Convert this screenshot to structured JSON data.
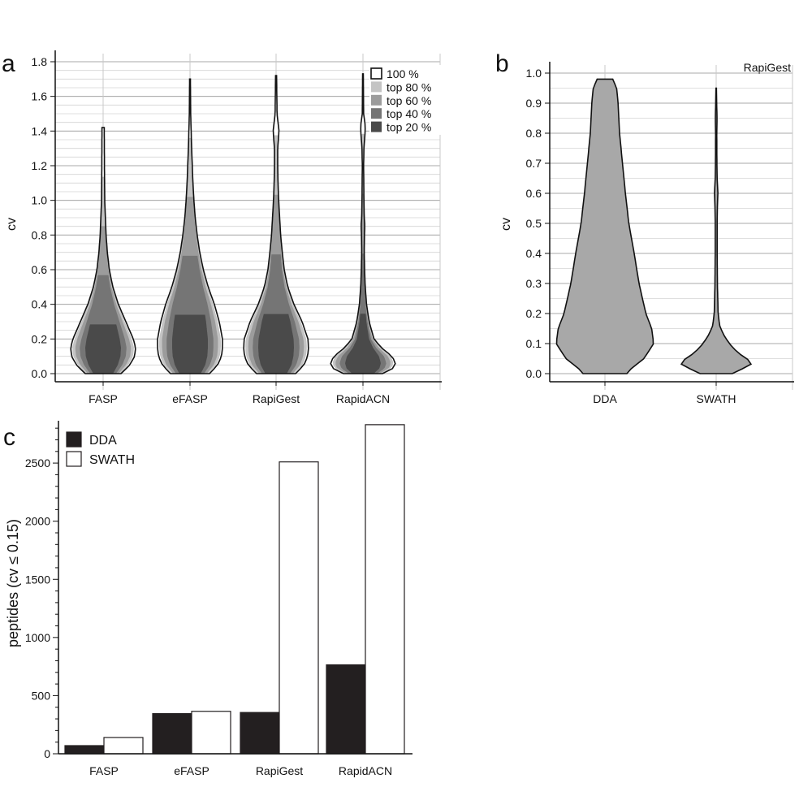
{
  "chart_data": [
    {
      "panel": "a",
      "type": "violin",
      "ylabel": "cv",
      "ylim": [
        0,
        1.8
      ],
      "yticks": [
        "0.0",
        "0.2",
        "0.4",
        "0.6",
        "0.8",
        "1.0",
        "1.2",
        "1.4",
        "1.6",
        "1.8"
      ],
      "grid": true,
      "legend_position": "top-right",
      "legend": [
        {
          "label": "100 %",
          "color": "#ffffff"
        },
        {
          "label": "top 80 %",
          "color": "#c4c4c4"
        },
        {
          "label": "top 60 %",
          "color": "#9c9c9c"
        },
        {
          "label": "top 40 %",
          "color": "#757575"
        },
        {
          "label": "top 20 %",
          "color": "#4a4a4a"
        }
      ],
      "categories": [
        {
          "label": "FASP",
          "max": 1.42,
          "profile": [
            [
              0,
              0.55
            ],
            [
              0.05,
              0.82
            ],
            [
              0.1,
              0.97
            ],
            [
              0.15,
              1.0
            ],
            [
              0.2,
              0.93
            ],
            [
              0.3,
              0.7
            ],
            [
              0.4,
              0.47
            ],
            [
              0.5,
              0.3
            ],
            [
              0.6,
              0.19
            ],
            [
              0.7,
              0.13
            ],
            [
              0.8,
              0.09
            ],
            [
              0.9,
              0.07
            ],
            [
              1.0,
              0.05
            ],
            [
              1.2,
              0.04
            ],
            [
              1.42,
              0.035
            ]
          ]
        },
        {
          "label": "eFASP",
          "max": 1.7,
          "profile": [
            [
              0,
              0.6
            ],
            [
              0.05,
              0.85
            ],
            [
              0.1,
              0.97
            ],
            [
              0.15,
              1.0
            ],
            [
              0.2,
              1.0
            ],
            [
              0.3,
              0.9
            ],
            [
              0.4,
              0.75
            ],
            [
              0.5,
              0.56
            ],
            [
              0.6,
              0.41
            ],
            [
              0.7,
              0.3
            ],
            [
              0.8,
              0.22
            ],
            [
              0.9,
              0.16
            ],
            [
              1.0,
              0.12
            ],
            [
              1.1,
              0.09
            ],
            [
              1.2,
              0.07
            ],
            [
              1.3,
              0.05
            ],
            [
              1.4,
              0.035
            ],
            [
              1.5,
              0.02
            ],
            [
              1.7,
              0.012
            ]
          ]
        },
        {
          "label": "RapiGest",
          "max": 1.72,
          "profile": [
            [
              0,
              0.6
            ],
            [
              0.05,
              0.86
            ],
            [
              0.1,
              0.97
            ],
            [
              0.15,
              1.0
            ],
            [
              0.2,
              0.98
            ],
            [
              0.3,
              0.8
            ],
            [
              0.4,
              0.55
            ],
            [
              0.5,
              0.36
            ],
            [
              0.6,
              0.25
            ],
            [
              0.7,
              0.19
            ],
            [
              0.8,
              0.14
            ],
            [
              0.9,
              0.11
            ],
            [
              1.0,
              0.08
            ],
            [
              1.1,
              0.06
            ],
            [
              1.2,
              0.05
            ],
            [
              1.3,
              0.05
            ],
            [
              1.4,
              0.09
            ],
            [
              1.45,
              0.06
            ],
            [
              1.5,
              0.03
            ],
            [
              1.72,
              0.015
            ]
          ]
        },
        {
          "label": "RapidACN",
          "max": 1.73,
          "profile": [
            [
              0,
              0.6
            ],
            [
              0.03,
              0.92
            ],
            [
              0.06,
              1.0
            ],
            [
              0.1,
              0.9
            ],
            [
              0.15,
              0.56
            ],
            [
              0.2,
              0.34
            ],
            [
              0.3,
              0.19
            ],
            [
              0.4,
              0.11
            ],
            [
              0.5,
              0.07
            ],
            [
              0.6,
              0.05
            ],
            [
              0.7,
              0.04
            ],
            [
              0.8,
              0.045
            ],
            [
              0.85,
              0.06
            ],
            [
              0.9,
              0.04
            ],
            [
              1.0,
              0.03
            ],
            [
              1.1,
              0.025
            ],
            [
              1.2,
              0.02
            ],
            [
              1.3,
              0.03
            ],
            [
              1.4,
              0.07
            ],
            [
              1.45,
              0.06
            ],
            [
              1.5,
              0.02
            ],
            [
              1.73,
              0.01
            ]
          ]
        }
      ]
    },
    {
      "panel": "b",
      "type": "violin",
      "title": "RapiGest",
      "ylabel": "cv",
      "ylim": [
        0,
        1.0
      ],
      "yticks": [
        "0.0",
        "0.1",
        "0.2",
        "0.3",
        "0.4",
        "0.5",
        "0.6",
        "0.7",
        "0.8",
        "0.9",
        "1.0"
      ],
      "grid": true,
      "fill_color": "#a8a8a8",
      "categories": [
        {
          "label": "DDA",
          "max": 0.98,
          "profile": [
            [
              0.005,
              0.45
            ],
            [
              0.05,
              0.8
            ],
            [
              0.1,
              1.0
            ],
            [
              0.15,
              0.96
            ],
            [
              0.2,
              0.84
            ],
            [
              0.3,
              0.7
            ],
            [
              0.4,
              0.6
            ],
            [
              0.5,
              0.49
            ],
            [
              0.6,
              0.42
            ],
            [
              0.7,
              0.36
            ],
            [
              0.8,
              0.3
            ],
            [
              0.9,
              0.27
            ],
            [
              0.95,
              0.24
            ],
            [
              0.98,
              0.16
            ]
          ]
        },
        {
          "label": "SWATH",
          "max": 0.95,
          "profile": [
            [
              0,
              0.33
            ],
            [
              0.03,
              0.72
            ],
            [
              0.045,
              0.67
            ],
            [
              0.07,
              0.44
            ],
            [
              0.1,
              0.27
            ],
            [
              0.13,
              0.15
            ],
            [
              0.16,
              0.07
            ],
            [
              0.2,
              0.04
            ],
            [
              0.3,
              0.025
            ],
            [
              0.4,
              0.02
            ],
            [
              0.5,
              0.02
            ],
            [
              0.55,
              0.025
            ],
            [
              0.6,
              0.035
            ],
            [
              0.65,
              0.02
            ],
            [
              0.7,
              0.015
            ],
            [
              0.8,
              0.012
            ],
            [
              0.85,
              0.018
            ],
            [
              0.9,
              0.01
            ],
            [
              0.95,
              0.005
            ]
          ]
        }
      ]
    },
    {
      "panel": "c",
      "type": "bar",
      "ylabel": "peptides (cv ≤ 0.15)",
      "ylim": [
        0,
        2850
      ],
      "yticks": [
        "0",
        "500",
        "1000",
        "1500",
        "2000",
        "2500"
      ],
      "legend_position": "top-left",
      "categories": [
        "FASP",
        "eFASP",
        "RapiGest",
        "RapidACN"
      ],
      "series": [
        {
          "name": "DDA",
          "color": "#231f20",
          "values": [
            70,
            345,
            355,
            765
          ]
        },
        {
          "name": "SWATH",
          "color": "#ffffff",
          "values": [
            140,
            365,
            2510,
            2830
          ]
        }
      ]
    }
  ]
}
